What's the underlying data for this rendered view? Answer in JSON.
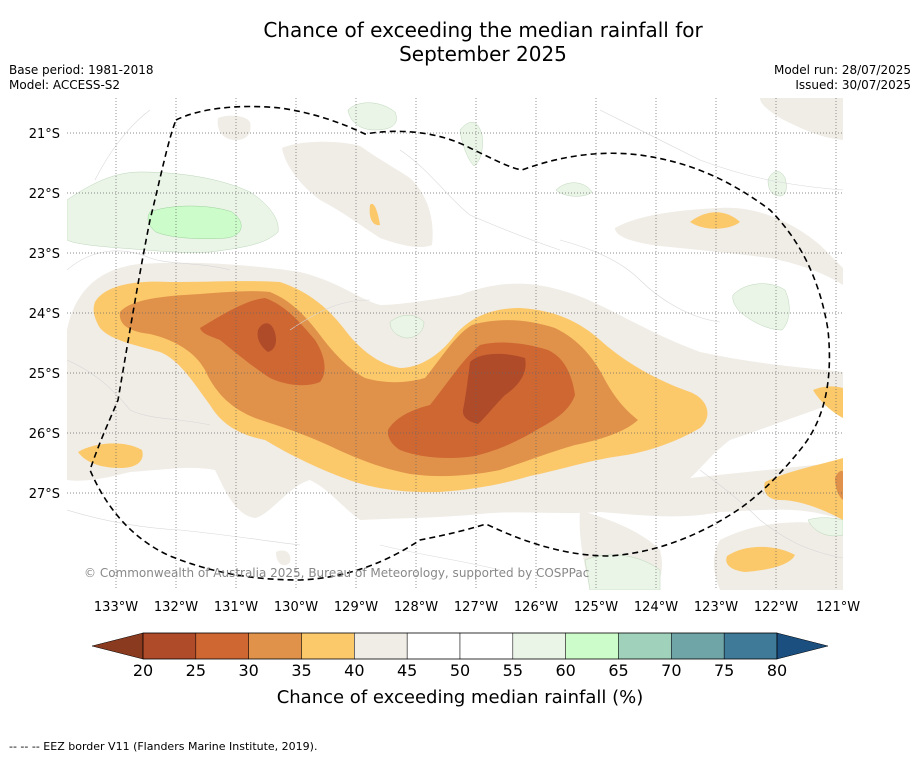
{
  "title_line1": "Chance of exceeding the median rainfall for",
  "title_line2": "September 2025",
  "base_period": "Base period: 1981-2018",
  "model": "Model: ACCESS-S2",
  "model_run": "Model run: 28/07/2025",
  "issued": "Issued: 30/07/2025",
  "copyright": "© Commonwealth of Australia 2025, Bureau of Meteorology, supported by COSPPac",
  "lat_labels": [
    "21°S",
    "22°S",
    "23°S",
    "24°S",
    "25°S",
    "26°S",
    "27°S"
  ],
  "lon_labels": [
    "133°W",
    "132°W",
    "131°W",
    "130°W",
    "129°W",
    "128°W",
    "127°W",
    "126°W",
    "125°W",
    "124°W",
    "123°W",
    "122°W",
    "121°W"
  ],
  "colorbar": {
    "label": "Chance of exceeding median rainfall (%)",
    "ticks": [
      "20",
      "25",
      "30",
      "35",
      "40",
      "45",
      "50",
      "55",
      "60",
      "65",
      "70",
      "75",
      "80"
    ],
    "under_color": "#8a3a1e",
    "over_color": "#1a4f7f",
    "colors": [
      "#b04b2a",
      "#cf6733",
      "#e0924a",
      "#fcc96a",
      "#f0ece6",
      "#ffffff",
      "#ffffff",
      "#eaf5e8",
      "#ccfcca",
      "#9fd1bb",
      "#6fa5a7",
      "#3f7a99"
    ]
  },
  "eez_note": "--  --  -- EEZ border V11 (Flanders Marine Institute, 2019)."
}
